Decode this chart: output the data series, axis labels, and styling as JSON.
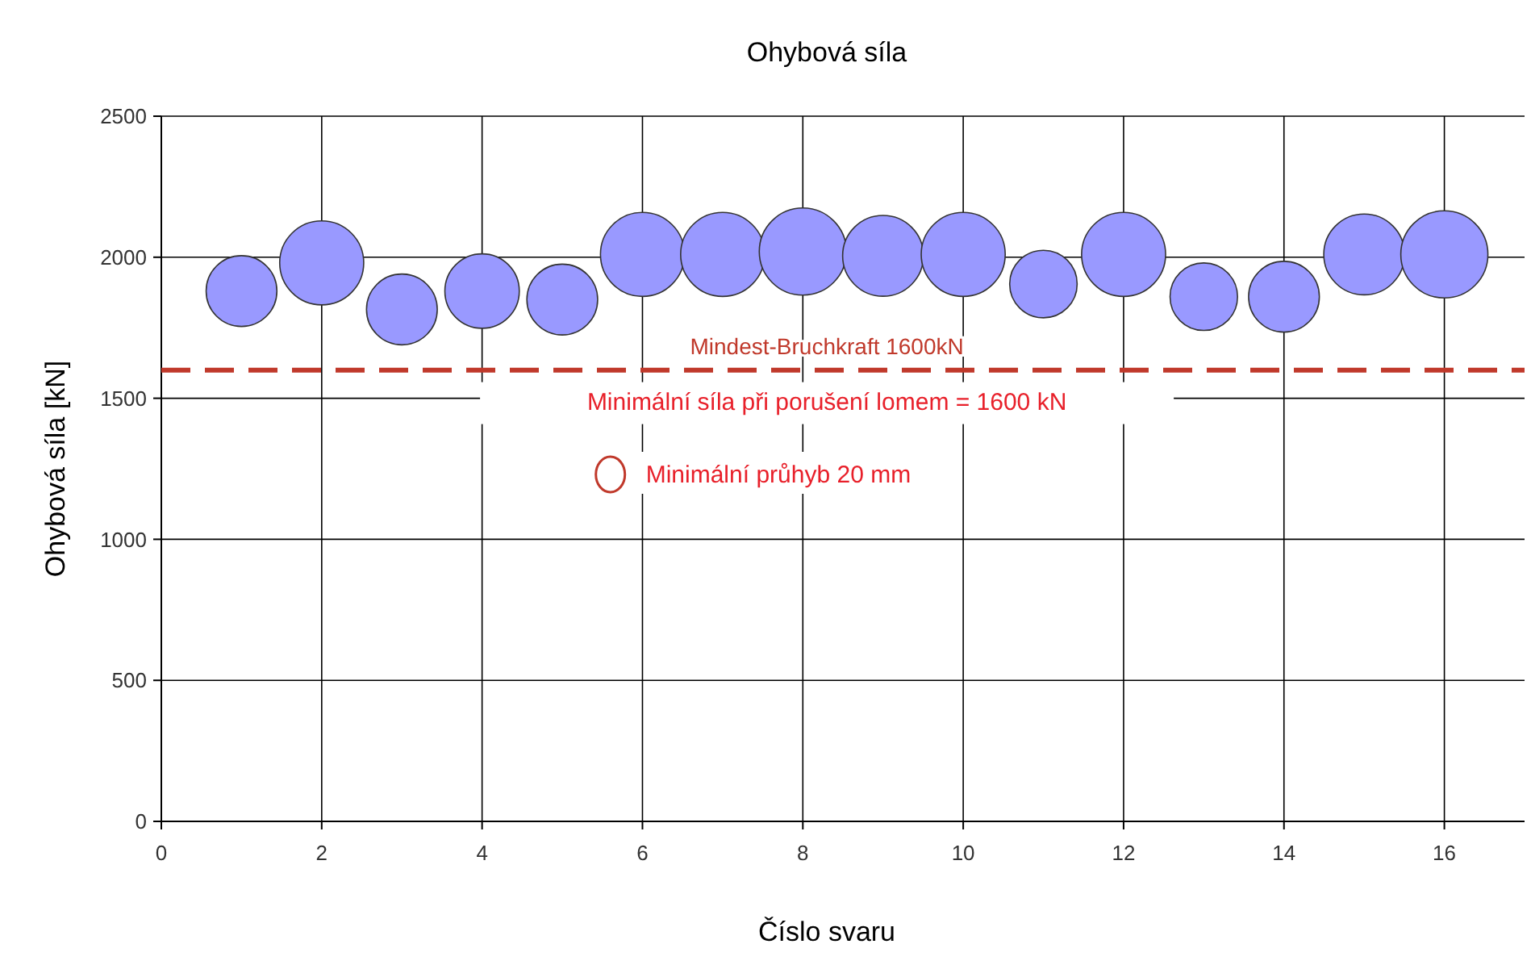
{
  "chart_data": {
    "type": "bubble",
    "title": "Ohybová síla",
    "xlabel": "Číslo svaru",
    "ylabel": "Ohybová síla [kN]",
    "x": [
      1,
      2,
      3,
      4,
      5,
      6,
      7,
      8,
      9,
      10,
      11,
      12,
      13,
      14,
      15,
      16
    ],
    "values": [
      1880,
      1980,
      1815,
      1880,
      1850,
      2010,
      2010,
      2020,
      2005,
      2010,
      1905,
      2010,
      1860,
      1860,
      2010,
      2010
    ],
    "sizes": [
      0.66,
      0.93,
      0.66,
      0.73,
      0.66,
      0.93,
      0.93,
      1,
      0.86,
      0.93,
      0.6,
      0.93,
      0.6,
      0.66,
      0.86,
      1
    ],
    "color": "#9999ff",
    "xlim": [
      0,
      17
    ],
    "xticks": [
      0,
      2,
      4,
      6,
      8,
      10,
      12,
      14,
      16
    ],
    "ylim": [
      0,
      2500
    ],
    "yticks": [
      0,
      500,
      1000,
      1500,
      2000,
      2500
    ],
    "grid": true,
    "ref_lines": [
      {
        "axis": "y",
        "value": 1600,
        "label": "Mindest-Bruchkraft 1600kN",
        "color": "#c0392b",
        "line_style": "dashed"
      }
    ],
    "annotations": [
      "Minimální síla při porušení lomem = 1600 kN",
      {
        "text": "Minimální průhyb 20 mm",
        "x": 5.6,
        "y": 1230
      }
    ]
  }
}
